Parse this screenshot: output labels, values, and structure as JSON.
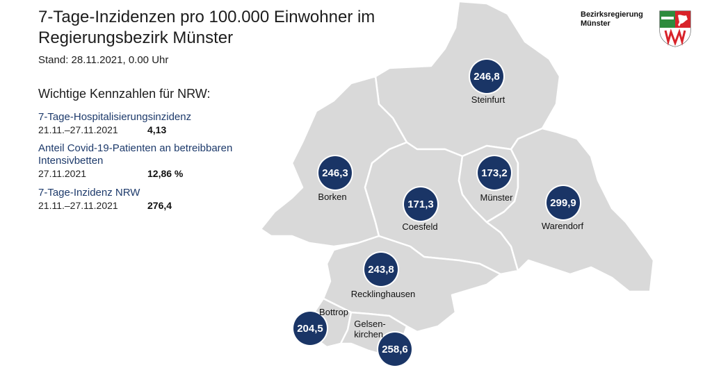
{
  "header": {
    "title": "7-Tage-Inzidenzen pro 100.000 Einwohner im Regierungsbezirk Münster",
    "stand": "Stand: 28.11.2021, 0.00 Uhr"
  },
  "logo": {
    "line1": "Bezirksregierung",
    "line2": "Münster",
    "coat_icon": "nrw-coat-of-arms-icon"
  },
  "kennzahlen": {
    "heading": "Wichtige Kennzahlen für NRW:",
    "items": [
      {
        "name": "7-Tage-Hospitalisierungsinzidenz",
        "period": "21.11.–27.11.2021",
        "value": "4,13"
      },
      {
        "name": "Anteil Covid-19-Patienten an betreibbaren Intensivbetten",
        "period": "27.11.2021",
        "value": "12,86 %"
      },
      {
        "name": "7-Tage-Inzidenz NRW",
        "period": "21.11.–27.11.2021",
        "value": "276,4"
      }
    ]
  },
  "colors": {
    "region_fill": "#d9d9d9",
    "region_border": "#ffffff",
    "badge": "#1a3566"
  },
  "regions": [
    {
      "name": "Steinfurt",
      "incidence": "246,8"
    },
    {
      "name": "Borken",
      "incidence": "246,3"
    },
    {
      "name": "Coesfeld",
      "incidence": "171,3"
    },
    {
      "name": "Münster",
      "incidence": "173,2"
    },
    {
      "name": "Warendorf",
      "incidence": "299,9"
    },
    {
      "name": "Recklinghausen",
      "incidence": "243,8"
    },
    {
      "name": "Bottrop",
      "incidence": "204,5"
    },
    {
      "name": "Gelsen-\nkirchen",
      "incidence": "258,6"
    }
  ]
}
